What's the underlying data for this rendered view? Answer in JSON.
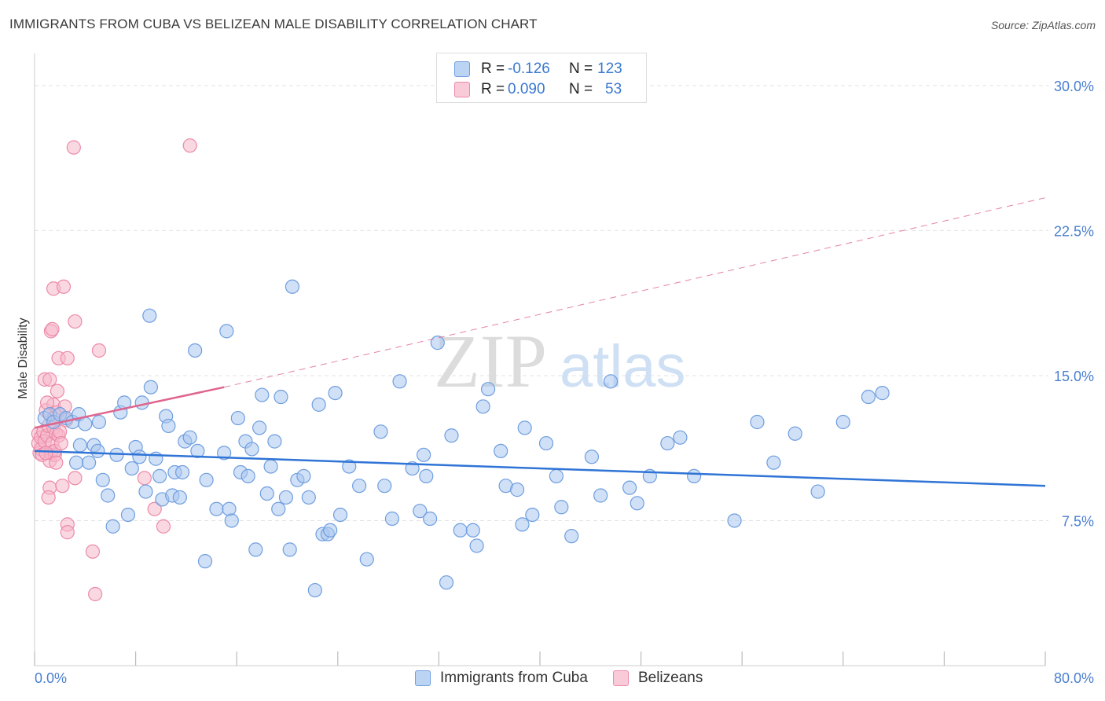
{
  "title": "IMMIGRANTS FROM CUBA VS BELIZEAN MALE DISABILITY CORRELATION CHART",
  "source": "Source: ZipAtlas.com",
  "watermark": {
    "zip": "ZIP",
    "atlas": "atlas"
  },
  "colors": {
    "blue_fill": "#a9c6ee",
    "blue_stroke": "#6f9ee0",
    "blue_line": "#2f74d6",
    "pink_fill": "#f6b8cb",
    "pink_stroke": "#ec8aa8",
    "pink_line": "#e0648d",
    "tick_text": "#4a7fd0",
    "grid": "#e3e3e3"
  },
  "legend_top": {
    "rows": [
      {
        "r_label": "R =",
        "r_value": "-0.126",
        "n_label": "N =",
        "n_value": "123"
      },
      {
        "r_label": "R =",
        "r_value": "0.090",
        "n_label": "N =",
        "n_value": "53"
      }
    ]
  },
  "legend_bottom": {
    "items": [
      "Immigrants from Cuba",
      "Belizeans"
    ]
  },
  "chart_data": {
    "type": "scatter",
    "xlabel": "",
    "ylabel": "Male Disability",
    "xlim": [
      0,
      80
    ],
    "ylim": [
      0,
      31.5
    ],
    "x_tick_labels": [
      "0.0%",
      "80.0%"
    ],
    "y_ticks": [
      7.5,
      15.0,
      22.5,
      30.0
    ],
    "y_tick_labels": [
      "7.5%",
      "15.0%",
      "22.5%",
      "30.0%"
    ],
    "grid": true,
    "legend_placement": "top-center",
    "series": [
      {
        "name": "Immigrants from Cuba",
        "trend": {
          "x": [
            0,
            80
          ],
          "y": [
            11.1,
            9.3
          ],
          "style": "solid"
        },
        "points": [
          [
            0.8,
            12.8
          ],
          [
            1.2,
            13.0
          ],
          [
            1.5,
            12.6
          ],
          [
            2.0,
            13.0
          ],
          [
            2.5,
            12.8
          ],
          [
            3.0,
            12.6
          ],
          [
            3.5,
            13.0
          ],
          [
            3.3,
            10.5
          ],
          [
            3.6,
            11.4
          ],
          [
            4.0,
            12.5
          ],
          [
            4.3,
            10.5
          ],
          [
            4.7,
            11.4
          ],
          [
            5.0,
            11.1
          ],
          [
            5.1,
            12.6
          ],
          [
            5.4,
            9.6
          ],
          [
            5.8,
            8.8
          ],
          [
            6.2,
            7.2
          ],
          [
            6.5,
            10.9
          ],
          [
            6.8,
            13.1
          ],
          [
            7.1,
            13.6
          ],
          [
            7.4,
            7.8
          ],
          [
            7.7,
            10.2
          ],
          [
            8.0,
            11.3
          ],
          [
            8.3,
            10.8
          ],
          [
            8.5,
            13.6
          ],
          [
            8.8,
            9.0
          ],
          [
            9.1,
            18.1
          ],
          [
            9.2,
            14.4
          ],
          [
            9.6,
            10.7
          ],
          [
            9.9,
            9.8
          ],
          [
            10.1,
            8.6
          ],
          [
            10.4,
            12.9
          ],
          [
            10.6,
            12.4
          ],
          [
            10.9,
            8.8
          ],
          [
            11.1,
            10.0
          ],
          [
            11.5,
            8.7
          ],
          [
            11.7,
            10.0
          ],
          [
            11.9,
            11.6
          ],
          [
            12.3,
            11.8
          ],
          [
            12.7,
            16.3
          ],
          [
            12.9,
            11.1
          ],
          [
            13.5,
            5.4
          ],
          [
            13.6,
            9.6
          ],
          [
            14.4,
            8.1
          ],
          [
            15.0,
            11.0
          ],
          [
            15.2,
            17.3
          ],
          [
            15.4,
            8.1
          ],
          [
            15.6,
            7.5
          ],
          [
            16.1,
            12.8
          ],
          [
            16.3,
            10.0
          ],
          [
            16.7,
            11.6
          ],
          [
            16.9,
            9.8
          ],
          [
            17.2,
            11.2
          ],
          [
            17.5,
            6.0
          ],
          [
            17.8,
            12.3
          ],
          [
            18.0,
            14.0
          ],
          [
            18.4,
            8.9
          ],
          [
            18.7,
            10.3
          ],
          [
            19.0,
            11.6
          ],
          [
            19.3,
            8.1
          ],
          [
            19.5,
            13.9
          ],
          [
            19.9,
            8.7
          ],
          [
            20.2,
            6.0
          ],
          [
            20.4,
            19.6
          ],
          [
            20.8,
            9.6
          ],
          [
            21.3,
            9.8
          ],
          [
            21.7,
            8.7
          ],
          [
            22.2,
            3.9
          ],
          [
            22.5,
            13.5
          ],
          [
            22.8,
            6.8
          ],
          [
            23.2,
            6.8
          ],
          [
            23.4,
            7.0
          ],
          [
            23.8,
            14.1
          ],
          [
            24.2,
            7.8
          ],
          [
            24.9,
            10.3
          ],
          [
            25.7,
            9.3
          ],
          [
            26.3,
            5.5
          ],
          [
            27.4,
            12.1
          ],
          [
            27.7,
            9.3
          ],
          [
            28.3,
            7.6
          ],
          [
            28.9,
            14.7
          ],
          [
            29.9,
            10.2
          ],
          [
            30.5,
            8.0
          ],
          [
            30.8,
            10.9
          ],
          [
            31.0,
            9.8
          ],
          [
            31.3,
            7.6
          ],
          [
            31.9,
            16.7
          ],
          [
            32.6,
            4.3
          ],
          [
            33.0,
            11.9
          ],
          [
            33.7,
            7.0
          ],
          [
            34.7,
            7.0
          ],
          [
            35.0,
            6.2
          ],
          [
            35.5,
            13.4
          ],
          [
            35.9,
            14.3
          ],
          [
            36.9,
            11.1
          ],
          [
            37.3,
            9.3
          ],
          [
            38.2,
            9.1
          ],
          [
            38.6,
            7.3
          ],
          [
            38.8,
            12.3
          ],
          [
            39.4,
            7.8
          ],
          [
            40.5,
            11.5
          ],
          [
            41.3,
            9.8
          ],
          [
            41.7,
            8.2
          ],
          [
            42.5,
            6.7
          ],
          [
            44.1,
            10.8
          ],
          [
            44.8,
            8.8
          ],
          [
            45.6,
            14.7
          ],
          [
            47.1,
            9.2
          ],
          [
            47.7,
            8.4
          ],
          [
            48.7,
            9.8
          ],
          [
            50.1,
            11.5
          ],
          [
            51.1,
            11.8
          ],
          [
            52.2,
            9.8
          ],
          [
            55.4,
            7.5
          ],
          [
            57.2,
            12.6
          ],
          [
            60.2,
            12.0
          ],
          [
            64.0,
            12.6
          ],
          [
            66.0,
            13.9
          ],
          [
            67.1,
            14.1
          ],
          [
            62.0,
            9.0
          ],
          [
            58.5,
            10.5
          ]
        ]
      },
      {
        "name": "Belizeans",
        "trend": {
          "x": [
            0,
            15
          ],
          "y": [
            12.3,
            14.4
          ],
          "style": "solid",
          "extended_to": [
            80,
            24.2
          ],
          "extended_style": "dashed"
        },
        "points": [
          [
            0.3,
            12.0
          ],
          [
            0.3,
            11.5
          ],
          [
            0.4,
            11.0
          ],
          [
            0.5,
            11.8
          ],
          [
            0.5,
            11.2
          ],
          [
            0.6,
            10.9
          ],
          [
            0.7,
            12.1
          ],
          [
            0.8,
            14.8
          ],
          [
            0.8,
            11.6
          ],
          [
            0.9,
            13.2
          ],
          [
            1.0,
            11.9
          ],
          [
            1.1,
            12.4
          ],
          [
            1.2,
            10.6
          ],
          [
            1.3,
            11.0
          ],
          [
            1.4,
            11.5
          ],
          [
            1.5,
            12.3
          ],
          [
            1.5,
            13.5
          ],
          [
            1.6,
            10.9
          ],
          [
            1.7,
            12.0
          ],
          [
            1.8,
            13.1
          ],
          [
            1.9,
            11.9
          ],
          [
            1.2,
            9.2
          ],
          [
            1.1,
            8.7
          ],
          [
            1.3,
            17.3
          ],
          [
            1.4,
            17.4
          ],
          [
            1.2,
            14.8
          ],
          [
            1.5,
            12.8
          ],
          [
            1.6,
            11.1
          ],
          [
            1.8,
            14.2
          ],
          [
            1.7,
            10.5
          ],
          [
            2.0,
            12.1
          ],
          [
            2.1,
            11.5
          ],
          [
            2.2,
            9.3
          ],
          [
            2.4,
            13.4
          ],
          [
            2.5,
            12.7
          ],
          [
            2.6,
            7.3
          ],
          [
            2.6,
            6.9
          ],
          [
            1.5,
            19.5
          ],
          [
            2.3,
            19.6
          ],
          [
            1.9,
            15.9
          ],
          [
            2.6,
            15.9
          ],
          [
            3.2,
            9.7
          ],
          [
            3.2,
            17.8
          ],
          [
            3.1,
            26.8
          ],
          [
            5.1,
            16.3
          ],
          [
            4.6,
            5.9
          ],
          [
            4.8,
            3.7
          ],
          [
            8.7,
            9.7
          ],
          [
            9.5,
            8.1
          ],
          [
            10.2,
            7.2
          ],
          [
            12.3,
            26.9
          ],
          [
            0.9,
            11.0
          ],
          [
            1.0,
            13.6
          ]
        ]
      }
    ]
  }
}
